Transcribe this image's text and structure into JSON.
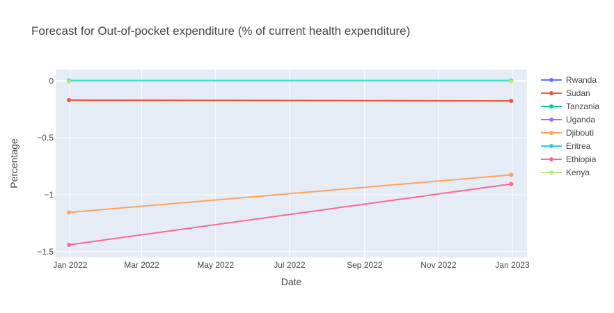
{
  "chart_data": {
    "type": "line",
    "title": "Forecast for Out-of-pocket expenditure (% of current health expenditure)",
    "xlabel": "Date",
    "ylabel": "Percentage",
    "x": [
      "2021-12-31",
      "2022-12-31"
    ],
    "x_ticks": [
      {
        "date": "2022-01-01",
        "label": "Jan 2022"
      },
      {
        "date": "2022-03-01",
        "label": "Mar 2022"
      },
      {
        "date": "2022-05-01",
        "label": "May 2022"
      },
      {
        "date": "2022-07-01",
        "label": "Jul 2022"
      },
      {
        "date": "2022-09-01",
        "label": "Sep 2022"
      },
      {
        "date": "2022-11-01",
        "label": "Nov 2022"
      },
      {
        "date": "2023-01-01",
        "label": "Jan 2023"
      }
    ],
    "xlim": [
      "2021-12-20",
      "2023-01-13"
    ],
    "ylim": [
      -1.55,
      0.1
    ],
    "y_ticks": [
      {
        "value": 0,
        "label": "0"
      },
      {
        "value": -0.5,
        "label": "−0.5"
      },
      {
        "value": -1,
        "label": "−1"
      },
      {
        "value": -1.5,
        "label": "−1.5"
      }
    ],
    "grid": true,
    "legend_position": "right",
    "series": [
      {
        "name": "Rwanda",
        "color": "#636efa",
        "values": [
          0.003,
          0.003
        ]
      },
      {
        "name": "Sudan",
        "color": "#ef553b",
        "values": [
          -0.168,
          -0.175
        ]
      },
      {
        "name": "Tanzania",
        "color": "#00cc96",
        "values": [
          0.002,
          0.002
        ]
      },
      {
        "name": "Uganda",
        "color": "#ab63fa",
        "values": [
          0.001,
          0.001
        ]
      },
      {
        "name": "Djibouti",
        "color": "#ffa15a",
        "values": [
          -1.155,
          -0.825
        ]
      },
      {
        "name": "Eritrea",
        "color": "#19d3f3",
        "values": [
          0.004,
          0.004
        ]
      },
      {
        "name": "Ethiopia",
        "color": "#ff6692",
        "values": [
          -1.44,
          -0.905
        ]
      },
      {
        "name": "Kenya",
        "color": "#b6e880",
        "values": [
          -0.003,
          -0.003
        ]
      }
    ]
  }
}
